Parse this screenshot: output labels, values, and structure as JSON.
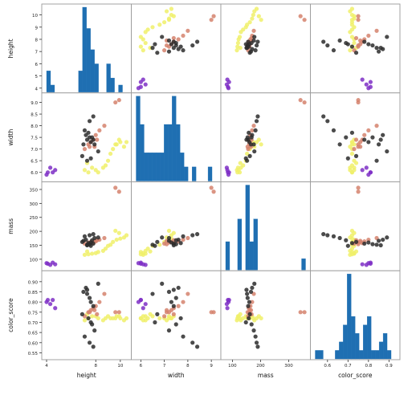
{
  "chart_data": {
    "type": "scatter",
    "kind": "scatter-matrix",
    "title": "",
    "variables": [
      "height",
      "width",
      "mass",
      "color_score"
    ],
    "axis_labels": {
      "height": "height",
      "width": "width",
      "mass": "mass",
      "color_score": "color_score"
    },
    "ranges": {
      "height": [
        4.0,
        10.5
      ],
      "width": [
        5.8,
        9.2
      ],
      "mass": [
        76,
        360
      ],
      "color_score": [
        0.54,
        0.93
      ]
    },
    "ticks": {
      "height": [
        "4",
        "5",
        "6",
        "7",
        "8",
        "9",
        "10"
      ],
      "width": [
        "6.0",
        "6.5",
        "7.0",
        "7.5",
        "8.0",
        "8.5",
        "9.0"
      ],
      "mass": [
        "100",
        "150",
        "200",
        "250",
        "300",
        "350"
      ],
      "color_score": [
        "0.55",
        "0.60",
        "0.65",
        "0.70",
        "0.75",
        "0.80",
        "0.85",
        "0.90"
      ]
    },
    "x_ticks": {
      "height": [
        "4",
        "8",
        "10"
      ],
      "width": [
        "6",
        "7",
        "8",
        "9"
      ],
      "mass": [
        "100",
        "200",
        "300"
      ],
      "color_score": [
        "0.6",
        "0.7",
        "0.8",
        "0.9"
      ]
    },
    "histograms": {
      "height": {
        "bins": [
          4.0,
          4.325,
          4.65,
          4.975,
          5.3,
          5.625,
          5.95,
          6.275,
          6.6,
          6.925,
          7.25,
          7.575,
          7.9,
          8.225,
          8.55,
          8.875,
          9.2,
          9.525,
          9.85,
          10.175,
          10.5
        ],
        "counts": [
          3,
          1,
          0,
          0,
          0,
          0,
          0,
          0,
          3,
          12,
          9,
          6,
          4,
          0,
          0,
          4,
          2,
          0,
          1,
          0
        ]
      },
      "width": {
        "bins": [
          5.8,
          5.97,
          6.14,
          6.31,
          6.48,
          6.65,
          6.82,
          6.99,
          7.16,
          7.33,
          7.5,
          7.67,
          7.84,
          8.01,
          8.18,
          8.35,
          8.52,
          8.69,
          8.86,
          9.03,
          9.2
        ],
        "counts": [
          6,
          4,
          2,
          2,
          2,
          2,
          2,
          4,
          4,
          6,
          4,
          2,
          1,
          0,
          1,
          0,
          0,
          0,
          1,
          0
        ]
      },
      "mass": {
        "bins": [
          76,
          90.2,
          104.4,
          118.6,
          132.8,
          147,
          161.2,
          175.4,
          189.6,
          203.8,
          218,
          232.2,
          246.4,
          260.6,
          274.8,
          289,
          303.2,
          317.4,
          331.6,
          345.8,
          360
        ],
        "counts": [
          5,
          0,
          0,
          9,
          0,
          15,
          5,
          9,
          0,
          0,
          0,
          0,
          0,
          0,
          0,
          0,
          0,
          0,
          0,
          2
        ]
      },
      "color_score": {
        "bins": [
          0.54,
          0.5595,
          0.579,
          0.5985,
          0.618,
          0.6375,
          0.657,
          0.6765,
          0.696,
          0.7155,
          0.735,
          0.7545,
          0.774,
          0.7935,
          0.813,
          0.8325,
          0.852,
          0.8715,
          0.891,
          0.9105,
          0.93
        ],
        "counts": [
          1,
          1,
          0,
          0,
          0,
          1,
          2,
          4,
          10,
          5,
          3,
          1,
          4,
          5,
          1,
          1,
          2,
          3,
          1,
          0
        ]
      }
    },
    "groups": [
      {
        "color": "#7e2fc6",
        "points": [
          {
            "height": 4.0,
            "width": 5.9,
            "mass": 86,
            "color_score": 0.8
          },
          {
            "height": 4.1,
            "width": 6.0,
            "mass": 84,
            "color_score": 0.81
          },
          {
            "height": 4.3,
            "width": 6.2,
            "mass": 80,
            "color_score": 0.79
          },
          {
            "height": 4.7,
            "width": 6.1,
            "mass": 82,
            "color_score": 0.77
          },
          {
            "height": 4.5,
            "width": 6.0,
            "mass": 88,
            "color_score": 0.81
          }
        ]
      },
      {
        "color": "#f0f06a",
        "points": [
          {
            "height": 7.1,
            "width": 6.1,
            "mass": 116,
            "color_score": 0.71
          },
          {
            "height": 7.4,
            "width": 6.0,
            "mass": 118,
            "color_score": 0.72
          },
          {
            "height": 7.7,
            "width": 6.2,
            "mass": 120,
            "color_score": 0.73
          },
          {
            "height": 8.0,
            "width": 6.1,
            "mass": 122,
            "color_score": 0.73
          },
          {
            "height": 8.2,
            "width": 6.0,
            "mass": 126,
            "color_score": 0.72
          },
          {
            "height": 8.6,
            "width": 6.2,
            "mass": 130,
            "color_score": 0.71
          },
          {
            "height": 8.8,
            "width": 6.3,
            "mass": 138,
            "color_score": 0.72
          },
          {
            "height": 9.0,
            "width": 6.5,
            "mass": 148,
            "color_score": 0.73
          },
          {
            "height": 9.2,
            "width": 6.8,
            "mass": 152,
            "color_score": 0.72
          },
          {
            "height": 9.4,
            "width": 7.0,
            "mass": 162,
            "color_score": 0.72
          },
          {
            "height": 9.7,
            "width": 7.2,
            "mass": 170,
            "color_score": 0.73
          },
          {
            "height": 10.0,
            "width": 7.3,
            "mass": 174,
            "color_score": 0.72
          },
          {
            "height": 10.3,
            "width": 7.1,
            "mass": 178,
            "color_score": 0.71
          },
          {
            "height": 10.5,
            "width": 7.3,
            "mass": 186,
            "color_score": 0.72
          },
          {
            "height": 9.9,
            "width": 7.4,
            "mass": 194,
            "color_score": 0.73
          },
          {
            "height": 9.6,
            "width": 7.2,
            "mass": 202,
            "color_score": 0.72
          },
          {
            "height": 7.3,
            "width": 6.4,
            "mass": 128,
            "color_score": 0.74
          }
        ]
      },
      {
        "color": "#d5826d",
        "points": [
          {
            "height": 7.1,
            "width": 7.0,
            "mass": 156,
            "color_score": 0.73
          },
          {
            "height": 7.4,
            "width": 7.2,
            "mass": 160,
            "color_score": 0.75
          },
          {
            "height": 7.6,
            "width": 7.3,
            "mass": 162,
            "color_score": 0.76
          },
          {
            "height": 7.8,
            "width": 7.4,
            "mass": 158,
            "color_score": 0.77
          },
          {
            "height": 8.0,
            "width": 7.6,
            "mass": 164,
            "color_score": 0.78
          },
          {
            "height": 8.3,
            "width": 7.8,
            "mass": 170,
            "color_score": 0.8
          },
          {
            "height": 8.7,
            "width": 8.0,
            "mass": 176,
            "color_score": 0.84
          },
          {
            "height": 8.1,
            "width": 7.4,
            "mass": 168,
            "color_score": 0.74
          },
          {
            "height": 7.5,
            "width": 7.1,
            "mass": 154,
            "color_score": 0.75
          },
          {
            "height": 7.9,
            "width": 7.1,
            "mass": 166,
            "color_score": 0.76
          },
          {
            "height": 9.6,
            "width": 9.0,
            "mass": 356,
            "color_score": 0.75
          },
          {
            "height": 9.9,
            "width": 9.1,
            "mass": 342,
            "color_score": 0.75
          }
        ]
      },
      {
        "color": "#2b2b2b",
        "points": [
          {
            "height": 7.3,
            "width": 7.4,
            "mass": 150,
            "color_score": 0.86
          },
          {
            "height": 7.5,
            "width": 7.5,
            "mass": 154,
            "color_score": 0.82
          },
          {
            "height": 7.6,
            "width": 7.3,
            "mass": 160,
            "color_score": 0.8
          },
          {
            "height": 7.8,
            "width": 7.4,
            "mass": 156,
            "color_score": 0.78
          },
          {
            "height": 7.0,
            "width": 7.2,
            "mass": 166,
            "color_score": 0.85
          },
          {
            "height": 7.2,
            "width": 7.6,
            "mass": 170,
            "color_score": 0.87
          },
          {
            "height": 7.4,
            "width": 7.7,
            "mass": 158,
            "color_score": 0.72
          },
          {
            "height": 7.7,
            "width": 7.5,
            "mass": 168,
            "color_score": 0.69
          },
          {
            "height": 7.9,
            "width": 7.2,
            "mass": 176,
            "color_score": 0.66
          },
          {
            "height": 7.1,
            "width": 7.8,
            "mass": 182,
            "color_score": 0.63
          },
          {
            "height": 7.5,
            "width": 8.2,
            "mass": 186,
            "color_score": 0.6
          },
          {
            "height": 7.8,
            "width": 8.4,
            "mass": 190,
            "color_score": 0.58
          },
          {
            "height": 8.2,
            "width": 6.9,
            "mass": 178,
            "color_score": 0.89
          },
          {
            "height": 7.3,
            "width": 6.5,
            "mass": 152,
            "color_score": 0.84
          },
          {
            "height": 6.9,
            "width": 6.7,
            "mass": 162,
            "color_score": 0.74
          },
          {
            "height": 7.6,
            "width": 6.6,
            "mass": 148,
            "color_score": 0.7
          }
        ]
      }
    ],
    "grid": false,
    "legend": "none"
  }
}
